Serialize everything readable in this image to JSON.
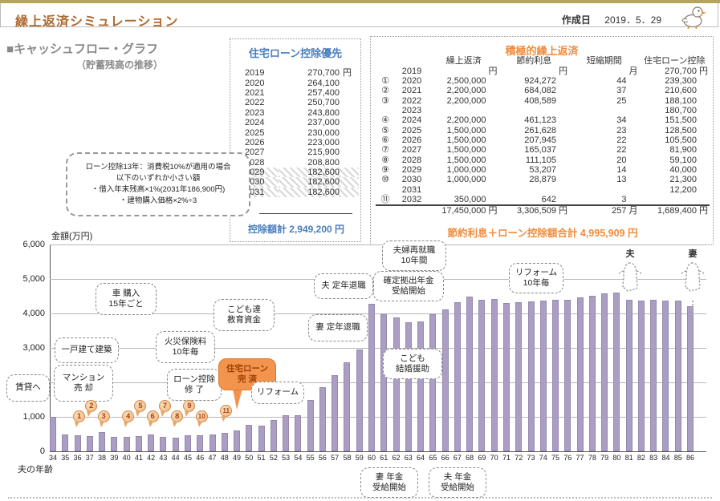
{
  "header": {
    "title": "繰上返済シミュレーション",
    "date_label": "作成日",
    "date_value": "2019．5．29",
    "mascot": "duck-mascot-icon"
  },
  "section": {
    "title": "■キャッシュフロー・グラフ",
    "subtitle": "（貯蓄残高の推移）"
  },
  "note_bubble": {
    "text": "ローン控除13年：消費税10%が適用の場合\n以下のいずれか小さい額\n・借入年末残高×1%(2031年186,900円)\n・建物購入価格×2%÷3"
  },
  "deduction_table": {
    "title": "住宅ローン控除優先",
    "rows": [
      {
        "year": "2019",
        "value": "270,700",
        "unit": "円",
        "hatched": false
      },
      {
        "year": "2020",
        "value": "264,100",
        "unit": "",
        "hatched": false
      },
      {
        "year": "2021",
        "value": "257,400",
        "unit": "",
        "hatched": false
      },
      {
        "year": "2022",
        "value": "250,700",
        "unit": "",
        "hatched": false
      },
      {
        "year": "2023",
        "value": "243,800",
        "unit": "",
        "hatched": false
      },
      {
        "year": "2024",
        "value": "237,000",
        "unit": "",
        "hatched": false
      },
      {
        "year": "2025",
        "value": "230,000",
        "unit": "",
        "hatched": false
      },
      {
        "year": "2026",
        "value": "223,000",
        "unit": "",
        "hatched": false
      },
      {
        "year": "2027",
        "value": "215,900",
        "unit": "",
        "hatched": false
      },
      {
        "year": "2028",
        "value": "208,800",
        "unit": "",
        "hatched": false
      },
      {
        "year": "2029",
        "value": "182,600",
        "unit": "",
        "hatched": true
      },
      {
        "year": "2030",
        "value": "182,600",
        "unit": "",
        "hatched": true
      },
      {
        "year": "2031",
        "value": "182,600",
        "unit": "",
        "hatched": true
      }
    ],
    "total_text": "控除額計 2,949,200 円"
  },
  "prepayment_table": {
    "title": "積極的繰上返済",
    "columns": [
      "繰上返済",
      "節約利息",
      "短縮期間",
      "住宅ローン控除"
    ],
    "rows": [
      {
        "no": "",
        "year": "2019",
        "prepay": "円",
        "interest": "円",
        "months": "月",
        "deduction": "270,700 円"
      },
      {
        "no": "①",
        "year": "2020",
        "prepay": "2,500,000",
        "interest": "924,272",
        "months": "44",
        "deduction": "239,300"
      },
      {
        "no": "②",
        "year": "2021",
        "prepay": "2,200,000",
        "interest": "684,082",
        "months": "37",
        "deduction": "210,600"
      },
      {
        "no": "③",
        "year": "2022",
        "prepay": "2,200,000",
        "interest": "408,589",
        "months": "25",
        "deduction": "188,100"
      },
      {
        "no": "",
        "year": "2023",
        "prepay": "",
        "interest": "",
        "months": "",
        "deduction": "180,700"
      },
      {
        "no": "④",
        "year": "2024",
        "prepay": "2,200,000",
        "interest": "461,123",
        "months": "34",
        "deduction": "151,500"
      },
      {
        "no": "⑤",
        "year": "2025",
        "prepay": "1,500,000",
        "interest": "261,628",
        "months": "23",
        "deduction": "128,500"
      },
      {
        "no": "⑥",
        "year": "2026",
        "prepay": "1,500,000",
        "interest": "207,945",
        "months": "22",
        "deduction": "105,500"
      },
      {
        "no": "⑦",
        "year": "2027",
        "prepay": "1,500,000",
        "interest": "165,037",
        "months": "22",
        "deduction": "81,900"
      },
      {
        "no": "⑧",
        "year": "2028",
        "prepay": "1,500,000",
        "interest": "111,105",
        "months": "20",
        "deduction": "59,100"
      },
      {
        "no": "⑨",
        "year": "2029",
        "prepay": "1,000,000",
        "interest": "53,207",
        "months": "14",
        "deduction": "40,000"
      },
      {
        "no": "⑩",
        "year": "2030",
        "prepay": "1,000,000",
        "interest": "28,879",
        "months": "13",
        "deduction": "21,300"
      },
      {
        "no": "",
        "year": "2031",
        "prepay": "",
        "interest": "",
        "months": "",
        "deduction": "12,200"
      },
      {
        "no": "⑪",
        "year": "2032",
        "prepay": "350,000",
        "interest": "642",
        "months": "3",
        "deduction": ""
      }
    ],
    "total_row": {
      "prepay": "17,450,000 円",
      "interest": "3,306,509 円",
      "months": "257 月",
      "deduction": "1,689,400 円"
    },
    "footer": "節約利息＋ローン控除額合計 4,995,909 円"
  },
  "chart_data": {
    "type": "bar",
    "title": "キャッシュフロー・グラフ（貯蓄残高の推移）",
    "ylabel": "金額(万円)",
    "xlabel": "夫の年齢",
    "ylim": [
      0,
      6000
    ],
    "ytick_step": 1000,
    "yticks": [
      "0",
      "1,000",
      "2,000",
      "3,000",
      "4,000",
      "5,000",
      "6,000"
    ],
    "grid": true,
    "bar_color": "#ab9dc3",
    "categories": [
      34,
      35,
      36,
      37,
      38,
      39,
      40,
      41,
      42,
      43,
      44,
      45,
      46,
      47,
      48,
      49,
      50,
      51,
      52,
      53,
      54,
      55,
      56,
      57,
      58,
      59,
      60,
      61,
      62,
      63,
      64,
      65,
      66,
      67,
      68,
      69,
      70,
      71,
      72,
      73,
      74,
      75,
      76,
      77,
      78,
      79,
      80,
      81,
      82,
      83,
      84,
      85,
      86
    ],
    "values": [
      1000,
      500,
      460,
      450,
      550,
      430,
      430,
      450,
      480,
      410,
      400,
      460,
      460,
      500,
      530,
      600,
      760,
      740,
      900,
      1050,
      1050,
      1500,
      1850,
      2200,
      2570,
      2950,
      4280,
      3970,
      3890,
      3750,
      3770,
      3970,
      4120,
      4330,
      4500,
      4400,
      4420,
      4300,
      4330,
      4360,
      4380,
      4400,
      4400,
      4470,
      4510,
      4570,
      4610,
      4400,
      4380,
      4390,
      4370,
      4380,
      4220
    ],
    "markers": [
      {
        "no": "1",
        "age": 36,
        "row": "low"
      },
      {
        "no": "2",
        "age": 37,
        "row": "high"
      },
      {
        "no": "3",
        "age": 38,
        "row": "low"
      },
      {
        "no": "4",
        "age": 40,
        "row": "low"
      },
      {
        "no": "5",
        "age": 41,
        "row": "high"
      },
      {
        "no": "6",
        "age": 42,
        "row": "low"
      },
      {
        "no": "7",
        "age": 43,
        "row": "high"
      },
      {
        "no": "8",
        "age": 44,
        "row": "low"
      },
      {
        "no": "9",
        "age": 45,
        "row": "high"
      },
      {
        "no": "10",
        "age": 46,
        "row": "low"
      },
      {
        "no": "11",
        "age": 48,
        "row": "mid"
      }
    ],
    "annotations": {
      "rental": "賃貸へ",
      "condo_sale": "マンション\n売 却",
      "build_house": "一戸建て建築",
      "car": "車 購入\n15年ごと",
      "fire_ins": "火災保険料\n10年毎",
      "education": "こども達\n教育資金",
      "deduction_end": "ローン控除\n修 了",
      "loan_paid": "住宅ローン\n完 済",
      "reform": "リフォーム",
      "wife_retire": "妻 定年退職",
      "husband_retire": "夫 定年退職",
      "rehired": "夫婦再就職\n10年間",
      "dc_pension": "確定拠出年金\n受給開始",
      "marriage_support": "こども\n結婚援助",
      "reform_10y": "リフォーム\n10年毎",
      "wife_pension": "妻 年金\n受給開始",
      "husband_pension": "夫 年金\n受給開始"
    },
    "life_markers": [
      {
        "label": "夫",
        "age": 81
      },
      {
        "label": "妻",
        "age": 86
      }
    ]
  }
}
